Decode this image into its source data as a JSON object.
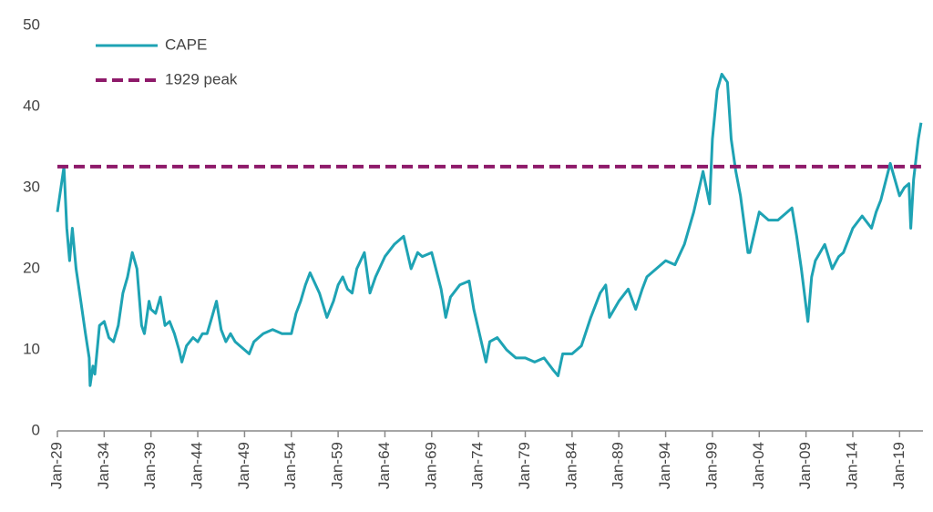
{
  "chart_data": {
    "type": "line",
    "legend": "top-left",
    "xlim": [
      1929,
      2021.5
    ],
    "xticks": [
      {
        "value": 1929,
        "label": "Jan-29"
      },
      {
        "value": 1934,
        "label": "Jan-34"
      },
      {
        "value": 1939,
        "label": "Jan-39"
      },
      {
        "value": 1944,
        "label": "Jan-44"
      },
      {
        "value": 1949,
        "label": "Jan-49"
      },
      {
        "value": 1954,
        "label": "Jan-54"
      },
      {
        "value": 1959,
        "label": "Jan-59"
      },
      {
        "value": 1964,
        "label": "Jan-64"
      },
      {
        "value": 1969,
        "label": "Jan-69"
      },
      {
        "value": 1974,
        "label": "Jan-74"
      },
      {
        "value": 1979,
        "label": "Jan-79"
      },
      {
        "value": 1984,
        "label": "Jan-84"
      },
      {
        "value": 1989,
        "label": "Jan-89"
      },
      {
        "value": 1994,
        "label": "Jan-94"
      },
      {
        "value": 1999,
        "label": "Jan-99"
      },
      {
        "value": 2004,
        "label": "Jan-04"
      },
      {
        "value": 2009,
        "label": "Jan-09"
      },
      {
        "value": 2014,
        "label": "Jan-14"
      },
      {
        "value": 2019,
        "label": "Jan-19"
      }
    ],
    "ylim": [
      0,
      50
    ],
    "yticks": [
      0,
      10,
      20,
      30,
      40,
      50
    ],
    "grid": false,
    "series": [
      {
        "name": "CAPE",
        "color": "#1ea3b4",
        "style": "solid",
        "x": [
          1929.0,
          1929.7,
          1930.0,
          1930.3,
          1930.6,
          1931.0,
          1931.5,
          1932.0,
          1932.4,
          1932.5,
          1932.8,
          1933.0,
          1933.5,
          1934.0,
          1934.5,
          1935.0,
          1935.5,
          1936.0,
          1936.5,
          1937.0,
          1937.5,
          1938.0,
          1938.3,
          1938.8,
          1939.0,
          1939.5,
          1940.0,
          1940.5,
          1941.0,
          1941.5,
          1942.0,
          1942.3,
          1942.8,
          1943.5,
          1944.0,
          1944.5,
          1945.0,
          1945.5,
          1946.0,
          1946.5,
          1947.0,
          1947.5,
          1948.0,
          1948.5,
          1949.0,
          1949.5,
          1950.0,
          1950.5,
          1951.0,
          1952.0,
          1953.0,
          1954.0,
          1954.5,
          1955.0,
          1955.5,
          1956.0,
          1957.0,
          1957.8,
          1958.5,
          1959.0,
          1959.5,
          1960.0,
          1960.5,
          1961.0,
          1961.8,
          1962.4,
          1963.0,
          1964.0,
          1965.0,
          1966.0,
          1966.8,
          1967.5,
          1968.0,
          1969.0,
          1970.0,
          1970.5,
          1971.0,
          1972.0,
          1973.0,
          1973.5,
          1974.0,
          1974.8,
          1975.2,
          1976.0,
          1977.0,
          1978.0,
          1979.0,
          1980.0,
          1981.0,
          1982.0,
          1982.5,
          1983.0,
          1984.0,
          1985.0,
          1986.0,
          1987.0,
          1987.6,
          1988.0,
          1989.0,
          1990.0,
          1990.8,
          1991.5,
          1992.0,
          1993.0,
          1994.0,
          1995.0,
          1996.0,
          1997.0,
          1998.0,
          1998.7,
          1999.0,
          1999.5,
          2000.0,
          2000.6,
          2001.0,
          2001.5,
          2002.0,
          2002.8,
          2003.0,
          2004.0,
          2005.0,
          2006.0,
          2007.0,
          2007.5,
          2008.0,
          2008.5,
          2009.2,
          2009.6,
          2010.0,
          2011.0,
          2011.8,
          2012.5,
          2013.0,
          2014.0,
          2015.0,
          2016.0,
          2016.5,
          2017.0,
          2018.0,
          2018.5,
          2019.0,
          2019.5,
          2020.0,
          2020.2,
          2020.5,
          2021.0,
          2021.3
        ],
        "values": [
          27,
          32.6,
          25,
          21,
          25,
          20,
          16,
          12,
          9,
          5.6,
          8,
          7,
          13,
          13.5,
          11.5,
          11,
          13,
          17,
          19,
          22,
          20,
          13,
          12,
          16,
          15,
          14.5,
          16.5,
          13,
          13.5,
          12,
          10,
          8.5,
          10.5,
          11.5,
          11,
          12,
          12,
          14,
          16,
          12.5,
          11,
          12,
          11,
          10.5,
          10,
          9.5,
          11,
          11.5,
          12,
          12.5,
          12,
          12,
          14.5,
          16,
          18,
          19.5,
          17,
          14,
          16,
          18,
          19,
          17.5,
          17,
          20,
          22,
          17,
          19,
          21.5,
          23,
          24,
          20,
          22,
          21.5,
          22,
          17.5,
          14,
          16.5,
          18,
          18.5,
          15,
          12.5,
          8.5,
          11,
          11.5,
          10,
          9,
          9,
          8.5,
          9,
          7.5,
          6.8,
          9.5,
          9.5,
          10.5,
          14,
          17,
          18,
          14,
          16,
          17.5,
          15,
          17.5,
          19,
          20,
          21,
          20.5,
          23,
          27,
          32,
          28,
          36,
          42,
          44,
          43,
          36,
          32,
          29,
          22,
          22,
          27,
          26,
          26,
          27,
          27.5,
          24,
          20,
          13.5,
          19,
          21,
          23,
          20,
          21.5,
          22,
          25,
          26.5,
          25,
          27,
          28.5,
          33,
          31,
          29,
          30,
          30.5,
          25,
          31,
          36,
          38
        ]
      },
      {
        "name": "1929 peak",
        "color": "#8e1a6a",
        "style": "dashed",
        "x": [
          1929,
          2021.3
        ],
        "values": [
          32.6,
          32.6
        ]
      }
    ]
  }
}
